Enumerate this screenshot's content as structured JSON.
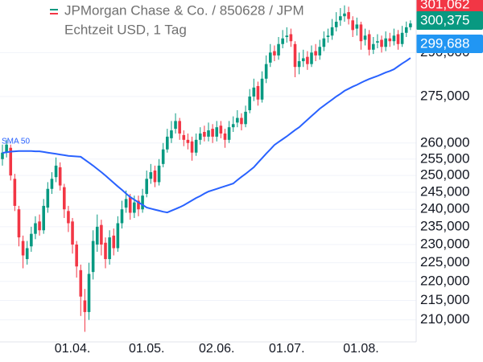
{
  "chart_data": {
    "type": "candlestick",
    "title": "JPMorgan Chase & Co. / 850628 / JPM",
    "subtitle": "Echtzeit USD, 1 Tag",
    "log_scale": true,
    "grid": true,
    "up_color": "#089981",
    "down_color": "#f23645",
    "ylim": [
      204500,
      309000
    ],
    "yticks": [
      {
        "value": 290000,
        "label": "290,000"
      },
      {
        "value": 275000,
        "label": "275,000"
      },
      {
        "value": 260000,
        "label": "260,000"
      },
      {
        "value": 255000,
        "label": "255,000"
      },
      {
        "value": 250000,
        "label": "250,000"
      },
      {
        "value": 245000,
        "label": "245,000"
      },
      {
        "value": 240000,
        "label": "240,000"
      },
      {
        "value": 235000,
        "label": "235,000"
      },
      {
        "value": 230000,
        "label": "230,000"
      },
      {
        "value": 225000,
        "label": "225,000"
      },
      {
        "value": 220000,
        "label": "220,000"
      },
      {
        "value": 215000,
        "label": "215,000"
      },
      {
        "value": 210000,
        "label": "210,000"
      }
    ],
    "categories": [
      null,
      null,
      null,
      null,
      null,
      null,
      null,
      null,
      null,
      null,
      null,
      null,
      null,
      null,
      null,
      null,
      null,
      "01.04.",
      null,
      null,
      null,
      null,
      null,
      null,
      null,
      null,
      null,
      null,
      null,
      null,
      null,
      null,
      null,
      null,
      null,
      "01.05.",
      null,
      null,
      null,
      null,
      null,
      null,
      null,
      null,
      null,
      null,
      null,
      null,
      null,
      null,
      null,
      null,
      "02.06.",
      null,
      null,
      null,
      null,
      null,
      null,
      null,
      null,
      null,
      null,
      null,
      null,
      null,
      null,
      null,
      null,
      "01.07.",
      null,
      null,
      null,
      null,
      null,
      null,
      null,
      null,
      null,
      null,
      null,
      null,
      null,
      null,
      null,
      null,
      null,
      "01.08.",
      null,
      null,
      null,
      null,
      null,
      null,
      null,
      null,
      null,
      null,
      null,
      null
    ],
    "open": [
      255000,
      257000,
      258500,
      249000,
      240000,
      231000,
      226000,
      229500,
      233000,
      236500,
      234000,
      240500,
      246000,
      249500,
      252500,
      246500,
      239500,
      236500,
      230000,
      223000,
      215000,
      212000,
      222500,
      230000,
      235500,
      230500,
      226000,
      232500,
      229000,
      236000,
      240500,
      243500,
      239000,
      242500,
      240000,
      244500,
      249000,
      251500,
      248000,
      253500,
      258000,
      261500,
      264500,
      267000,
      262500,
      261000,
      260500,
      257000,
      261000,
      263500,
      262000,
      264500,
      262000,
      265500,
      263000,
      261000,
      265000,
      266500,
      268000,
      266000,
      270500,
      275000,
      278500,
      274000,
      281000,
      286500,
      290500,
      289000,
      293000,
      295500,
      296500,
      293000,
      285000,
      287000,
      288500,
      286000,
      290500,
      289000,
      292000,
      295500,
      296000,
      299000,
      301500,
      303000,
      304500,
      301500,
      298500,
      300000,
      294500,
      296500,
      291000,
      293500,
      294500,
      292000,
      295000,
      294000,
      296500,
      293000,
      297000,
      299000
    ],
    "high": [
      259500,
      261000,
      259500,
      250500,
      241000,
      232500,
      231000,
      235000,
      238000,
      238500,
      243000,
      248000,
      251000,
      255500,
      254000,
      247500,
      241000,
      237500,
      231000,
      224500,
      218000,
      225000,
      234000,
      238500,
      237000,
      232000,
      234000,
      234500,
      238000,
      242500,
      245500,
      244500,
      244000,
      244000,
      246000,
      251500,
      253500,
      253000,
      255000,
      260000,
      264500,
      267000,
      269500,
      268000,
      264000,
      263000,
      262000,
      263000,
      265000,
      265500,
      266500,
      266000,
      267000,
      267000,
      264500,
      267000,
      268500,
      270500,
      269500,
      272000,
      277500,
      281000,
      280000,
      283500,
      289000,
      293000,
      292500,
      295500,
      298000,
      299000,
      298500,
      294000,
      290000,
      291000,
      290500,
      292500,
      293000,
      294500,
      297500,
      298500,
      302000,
      304500,
      306000,
      307000,
      306500,
      303000,
      302500,
      301000,
      298500,
      298000,
      295500,
      296500,
      296000,
      297500,
      297000,
      298500,
      298000,
      299500,
      301062,
      301500
    ],
    "low": [
      253000,
      255500,
      248500,
      239500,
      229500,
      223500,
      224500,
      228000,
      231500,
      232500,
      233000,
      239000,
      244500,
      248000,
      245500,
      237500,
      233500,
      227500,
      221000,
      211000,
      207000,
      210000,
      220500,
      228000,
      227000,
      223500,
      224500,
      227000,
      228000,
      234500,
      239000,
      237000,
      237500,
      238000,
      239000,
      243500,
      247500,
      246500,
      247000,
      252500,
      257000,
      260000,
      263000,
      261000,
      259000,
      258000,
      254500,
      256000,
      259500,
      260500,
      260500,
      260000,
      260500,
      261500,
      258500,
      260000,
      263500,
      265000,
      264000,
      265000,
      269500,
      273500,
      272000,
      273000,
      279500,
      285000,
      287000,
      287500,
      291500,
      293500,
      292000,
      281500,
      282500,
      285000,
      284000,
      285000,
      287000,
      287500,
      290500,
      293500,
      294500,
      297500,
      299500,
      301000,
      300000,
      295500,
      296000,
      291000,
      292500,
      289000,
      289500,
      291500,
      290000,
      290500,
      292000,
      292500,
      291000,
      292000,
      295500,
      298000
    ],
    "close": [
      257000,
      259500,
      250000,
      241000,
      232000,
      227000,
      229000,
      233000,
      236000,
      234000,
      241000,
      246000,
      249000,
      253000,
      247000,
      240000,
      236000,
      230000,
      224000,
      216000,
      212000,
      222000,
      231000,
      235000,
      230000,
      226000,
      232000,
      229000,
      236000,
      240000,
      243000,
      239000,
      242000,
      240000,
      244000,
      249000,
      251000,
      248000,
      253000,
      258000,
      262000,
      264000,
      267000,
      263000,
      261000,
      260000,
      257000,
      261000,
      263000,
      262000,
      264000,
      262000,
      265000,
      263000,
      261000,
      265000,
      266000,
      268000,
      266000,
      270000,
      275000,
      278000,
      274000,
      281000,
      286000,
      290000,
      289000,
      293000,
      295000,
      296000,
      294000,
      285000,
      287000,
      288000,
      286000,
      290000,
      289000,
      292000,
      295000,
      296000,
      299000,
      301000,
      303000,
      304000,
      302000,
      298000,
      300000,
      294000,
      296000,
      291000,
      293000,
      294000,
      292000,
      295000,
      294000,
      296000,
      293000,
      297000,
      299000,
      300375
    ],
    "overlay": {
      "name": "SMA 50",
      "color": "#2962ff",
      "values": [
        256900,
        257100,
        257300,
        257400,
        257500,
        257500,
        257500,
        257500,
        257400,
        257400,
        257200,
        257000,
        256800,
        256600,
        256400,
        256200,
        256000,
        255900,
        255800,
        255700,
        254800,
        253900,
        253000,
        252000,
        251000,
        250000,
        248900,
        247800,
        246700,
        245700,
        244600,
        243600,
        242800,
        242000,
        241300,
        240500,
        240200,
        239900,
        239600,
        239300,
        239100,
        239600,
        240100,
        240600,
        241200,
        241900,
        242600,
        243300,
        243900,
        244600,
        245200,
        245600,
        246000,
        246400,
        246800,
        247200,
        247600,
        248600,
        249600,
        250500,
        251500,
        252500,
        253900,
        255300,
        256700,
        258000,
        259400,
        260300,
        261200,
        262100,
        263100,
        264100,
        265000,
        266200,
        267400,
        268600,
        269800,
        271000,
        272000,
        273000,
        274000,
        275000,
        275900,
        276900,
        277600,
        278300,
        278900,
        279600,
        280300,
        280900,
        281400,
        281900,
        282500,
        283100,
        283600,
        284200,
        285200,
        286200,
        287100,
        288100
      ]
    },
    "price_labels": [
      {
        "value": 301062,
        "label": "301,062",
        "color": "#f23645"
      },
      {
        "value": 300375,
        "label": "300,375",
        "color": "#089981"
      },
      {
        "value": 299688,
        "label": "299,688",
        "color": "#2196f3"
      }
    ]
  }
}
